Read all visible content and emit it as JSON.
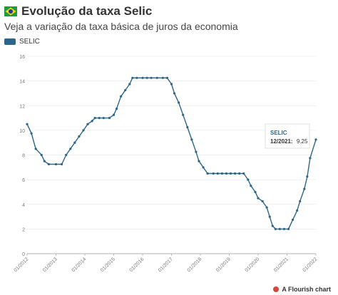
{
  "header": {
    "title": "Evolução da taxa Selic",
    "subtitle": "Veja a variação da taxa básica de juros da economia"
  },
  "legend": {
    "label": "SELIC",
    "color": "#2b6688"
  },
  "footer": {
    "credit": "A Flourish chart"
  },
  "tooltip": {
    "series": "SELIC",
    "date": "12/2021:",
    "value": "9.25"
  },
  "chart_data": {
    "type": "line",
    "title": "Evolução da taxa Selic",
    "subtitle": "Veja a variação da taxa básica de juros da economia",
    "ylim": [
      0,
      16
    ],
    "y_ticks": [
      0,
      2,
      4,
      6,
      8,
      10,
      12,
      14,
      16
    ],
    "x_range": [
      2012.0,
      2022.0
    ],
    "x_ticks": [
      2012,
      2013,
      2014,
      2015,
      2016,
      2017,
      2018,
      2019,
      2020,
      2021,
      2022
    ],
    "x_tick_labels": [
      "01/2012",
      "01/2013",
      "01/2014",
      "01/2015",
      "01/2016",
      "01/2017",
      "01/2018",
      "01/2019",
      "01/2020",
      "01/2021",
      "01/2022"
    ],
    "grid": true,
    "legend_position": "top-left",
    "series": [
      {
        "name": "SELIC",
        "color": "#2b6688",
        "points": [
          [
            2012.0,
            10.5
          ],
          [
            2012.15,
            9.75
          ],
          [
            2012.3,
            8.5
          ],
          [
            2012.5,
            8.0
          ],
          [
            2012.6,
            7.5
          ],
          [
            2012.75,
            7.25
          ],
          [
            2013.0,
            7.25
          ],
          [
            2013.2,
            7.25
          ],
          [
            2013.35,
            8.0
          ],
          [
            2013.5,
            8.5
          ],
          [
            2013.65,
            9.0
          ],
          [
            2013.8,
            9.5
          ],
          [
            2013.95,
            10.0
          ],
          [
            2014.1,
            10.5
          ],
          [
            2014.25,
            10.75
          ],
          [
            2014.35,
            11.0
          ],
          [
            2014.5,
            11.0
          ],
          [
            2014.65,
            11.0
          ],
          [
            2014.85,
            11.0
          ],
          [
            2015.0,
            11.25
          ],
          [
            2015.1,
            11.75
          ],
          [
            2015.25,
            12.75
          ],
          [
            2015.4,
            13.25
          ],
          [
            2015.55,
            13.75
          ],
          [
            2015.65,
            14.25
          ],
          [
            2015.8,
            14.25
          ],
          [
            2016.0,
            14.25
          ],
          [
            2016.15,
            14.25
          ],
          [
            2016.3,
            14.25
          ],
          [
            2016.5,
            14.25
          ],
          [
            2016.7,
            14.25
          ],
          [
            2016.85,
            14.25
          ],
          [
            2017.0,
            13.75
          ],
          [
            2017.1,
            13.0
          ],
          [
            2017.25,
            12.25
          ],
          [
            2017.4,
            11.25
          ],
          [
            2017.55,
            10.25
          ],
          [
            2017.7,
            9.25
          ],
          [
            2017.85,
            8.25
          ],
          [
            2017.95,
            7.5
          ],
          [
            2018.1,
            7.0
          ],
          [
            2018.25,
            6.5
          ],
          [
            2018.45,
            6.5
          ],
          [
            2018.6,
            6.5
          ],
          [
            2018.75,
            6.5
          ],
          [
            2018.9,
            6.5
          ],
          [
            2019.05,
            6.5
          ],
          [
            2019.2,
            6.5
          ],
          [
            2019.35,
            6.5
          ],
          [
            2019.5,
            6.5
          ],
          [
            2019.65,
            6.0
          ],
          [
            2019.75,
            5.5
          ],
          [
            2019.9,
            5.0
          ],
          [
            2020.0,
            4.5
          ],
          [
            2020.15,
            4.25
          ],
          [
            2020.3,
            3.75
          ],
          [
            2020.4,
            3.0
          ],
          [
            2020.5,
            2.25
          ],
          [
            2020.6,
            2.0
          ],
          [
            2020.75,
            2.0
          ],
          [
            2020.9,
            2.0
          ],
          [
            2021.05,
            2.0
          ],
          [
            2021.2,
            2.75
          ],
          [
            2021.35,
            3.5
          ],
          [
            2021.45,
            4.25
          ],
          [
            2021.6,
            5.25
          ],
          [
            2021.7,
            6.25
          ],
          [
            2021.8,
            7.75
          ],
          [
            2022.0,
            9.25
          ]
        ]
      }
    ]
  }
}
